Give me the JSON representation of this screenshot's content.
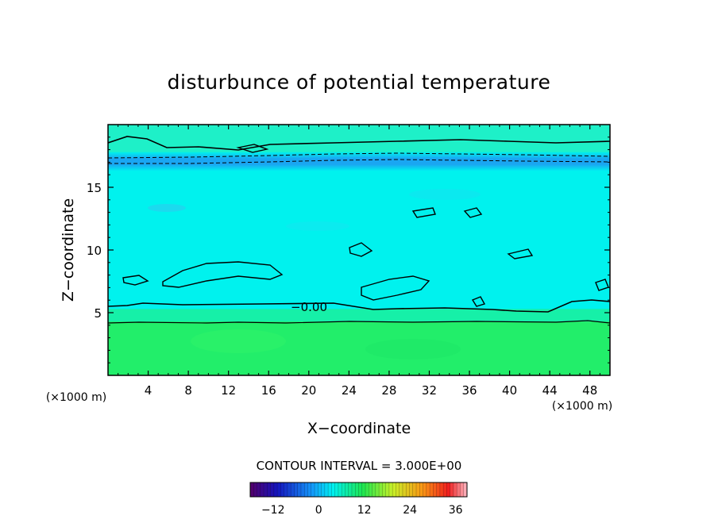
{
  "chart_data": {
    "type": "heatmap",
    "title": "disturbunce of potential temperature",
    "xlabel": "X−coordinate",
    "ylabel": "Z−coordinate",
    "x_unit_left": "(×1000 m)",
    "x_unit_right": "(×1000 m)",
    "xlim": [
      0,
      50
    ],
    "ylim": [
      0,
      20
    ],
    "x_ticks": [
      4,
      8,
      12,
      16,
      20,
      24,
      28,
      32,
      36,
      40,
      44,
      48
    ],
    "x_tick_labels": [
      "4",
      "8",
      "12",
      "16",
      "20",
      "24",
      "28",
      "32",
      "36",
      "40",
      "44",
      "48"
    ],
    "y_ticks": [
      5,
      10,
      15
    ],
    "y_tick_labels": [
      "5",
      "10",
      "15"
    ],
    "contour_label": "−0.00",
    "contour_interval_text": "CONTOUR INTERVAL = 3.000E+00",
    "contour_interval": 3.0,
    "colorbar": {
      "range": [
        -18,
        39
      ],
      "ticks": [
        -12,
        0,
        12,
        24,
        36
      ],
      "tick_labels": [
        "−12",
        "0",
        "12",
        "24",
        "36"
      ]
    },
    "regions": [
      {
        "name": "lower layer",
        "z_range": [
          0,
          4.3
        ],
        "value": 4.5,
        "color": "#22ee6a"
      },
      {
        "name": "transition",
        "z_range": [
          4.3,
          5.3
        ],
        "value": 2.0,
        "color": "#16f0a8"
      },
      {
        "name": "mid layer",
        "z_range": [
          5.3,
          16.3
        ],
        "value": 0.5,
        "color": "#00f2ee"
      },
      {
        "name": "cold band",
        "z_range": [
          16.3,
          17.8
        ],
        "value": -4.0,
        "color": "#18a8f2"
      },
      {
        "name": "upper layer",
        "z_range": [
          17.8,
          20
        ],
        "value": 1.0,
        "color": "#1ef0c8"
      }
    ],
    "grid": false
  }
}
